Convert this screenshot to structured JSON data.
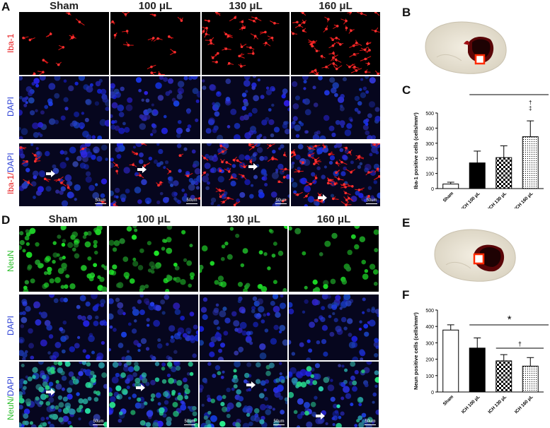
{
  "panel_letters": {
    "a": "A",
    "b": "B",
    "c": "C",
    "d": "D",
    "e": "E",
    "f": "F"
  },
  "top_columns": [
    "Sham",
    "100 μL",
    "130 μL",
    "160 μL"
  ],
  "bottom_columns": [
    "Sham",
    "100 μL",
    "130 μL",
    "160 μL"
  ],
  "top_rows": {
    "r1": {
      "marker": "Iba-1",
      "color": "#e8191c"
    },
    "r2": {
      "marker": "DAPI",
      "color": "#2b3fd6"
    },
    "r3": {
      "marker_red": "Iba-1",
      "slash": "/",
      "marker_blue": "DAPI"
    }
  },
  "bottom_rows": {
    "r1": {
      "marker": "NeuN",
      "color": "#2dbf2d"
    },
    "r2": {
      "marker": "DAPI",
      "color": "#2b3fd6"
    },
    "r3": {
      "marker_green": "NeuN",
      "slash": "/",
      "marker_blue": "DAPI"
    }
  },
  "scale_bar_label": "50um",
  "chart_data": [
    {
      "panel": "C",
      "type": "bar",
      "categories": [
        "Sham",
        "ICH 100 μL",
        "ICH 130 μL",
        "ICH 160 μL"
      ],
      "values": [
        30,
        170,
        205,
        343
      ],
      "errors": [
        12,
        78,
        78,
        105
      ],
      "ylabel": "Iba-1 positive cells (cells/mm²)",
      "ylim": [
        0,
        500
      ],
      "yticks": [
        0,
        100,
        200,
        300,
        400,
        500
      ],
      "bar_patterns": [
        "white",
        "black",
        "checker",
        "dots"
      ],
      "significance": [
        {
          "symbol": "*",
          "from": 1,
          "to": 3
        },
        {
          "symbol": "†",
          "at": 3
        },
        {
          "symbol": "‡",
          "at": 3
        }
      ]
    },
    {
      "panel": "F",
      "type": "bar",
      "categories": [
        "Sham",
        "ICH 100 μL",
        "ICH 130 μL",
        "ICH 160 μL"
      ],
      "values": [
        378,
        268,
        190,
        158
      ],
      "errors": [
        32,
        62,
        38,
        52
      ],
      "ylabel": "Neun positive cells (cells/mm²)",
      "ylim": [
        0,
        500
      ],
      "yticks": [
        0,
        100,
        200,
        300,
        400,
        500
      ],
      "bar_patterns": [
        "white",
        "black",
        "checker",
        "dots"
      ],
      "significance": [
        {
          "symbol": "*",
          "from": 1,
          "to": 3
        },
        {
          "symbol": "†",
          "from": 2,
          "to": 3
        }
      ]
    }
  ]
}
